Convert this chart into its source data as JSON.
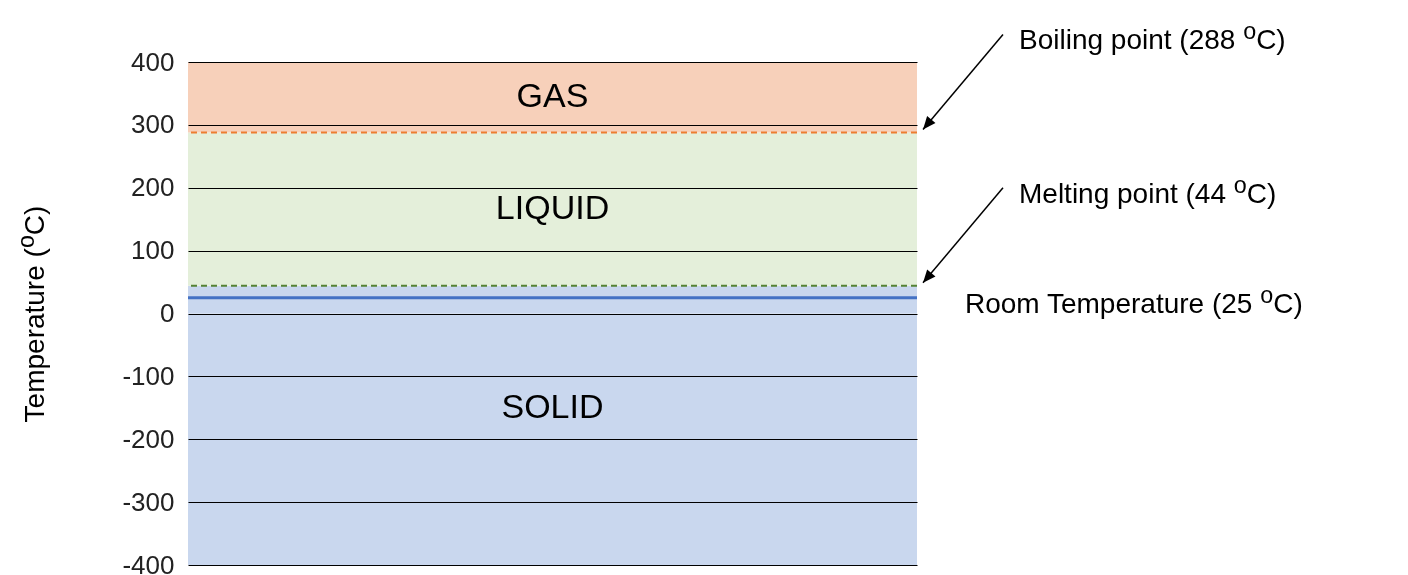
{
  "chart_data": {
    "type": "bar",
    "stacked": true,
    "ylabel": "Temperature ($^{o}$C)",
    "categories": [
      null
    ],
    "ylim": [
      -400,
      400
    ],
    "yticks": [
      -400,
      -300,
      -200,
      -100,
      0,
      100,
      200,
      300,
      400
    ],
    "grid": "y",
    "series": [
      {
        "color": "#c9d7ee",
        "values": [
          44
        ]
      },
      {
        "name": "LIQUID",
        "color": "#e4efda",
        "values": [
          244
        ]
      },
      {
        "name": "GAS",
        "color": "#f7d0ba",
        "values": [
          112
        ]
      },
      {
        "name": "SOLID",
        "color": "#c9d7ee",
        "values": [
          -400
        ]
      }
    ],
    "ref_lines": [
      {
        "axis": "y",
        "value": 288,
        "label": "Boiling point (288 $^{o}$C)",
        "color": "#ed7d31",
        "line_style": "dashed"
      },
      {
        "axis": "y",
        "value": 44,
        "label": "Melting point (44 $^{o}$C)",
        "color": "#548235",
        "line_style": "dashed"
      },
      {
        "axis": "y",
        "value": 25,
        "label": "Room Temperature (25 $^{o}$C)",
        "color": "#4472c4",
        "line_style": "solid"
      }
    ]
  }
}
